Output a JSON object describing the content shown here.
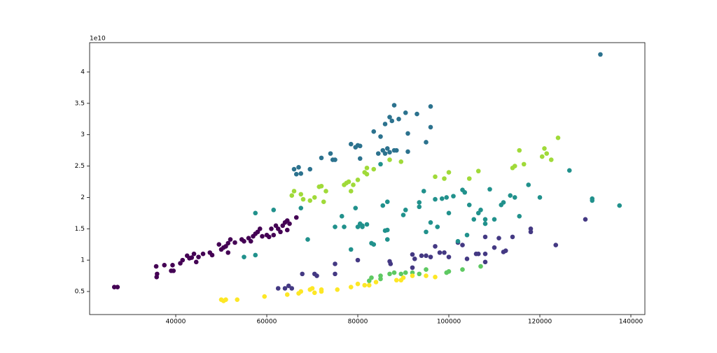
{
  "chart_data": {
    "type": "scatter",
    "y_offset_label": "1e10",
    "xlim": [
      21077,
      143077
    ],
    "ylim": [
      0.132,
      4.468
    ],
    "xticks": [
      40000,
      60000,
      80000,
      100000,
      120000,
      140000
    ],
    "yticks": [
      0.5,
      1.0,
      1.5,
      2.0,
      2.5,
      3.0,
      3.5,
      4.0
    ],
    "series": [
      {
        "color": "#440154",
        "x": [
          26500,
          27200,
          35700,
          35800,
          35900,
          37500,
          39000,
          39300,
          39500,
          41000,
          41500,
          42500,
          43000,
          43500,
          44000,
          44500,
          45000,
          46000,
          47500,
          48000,
          49500,
          50000,
          50500,
          51000,
          51500,
          52000,
          51500,
          53000,
          54500,
          55000,
          56000,
          56500,
          57000,
          57500,
          58000,
          58500,
          59000,
          60000,
          60500,
          61000,
          61500,
          62000,
          62500,
          63000,
          63500,
          64000,
          64500,
          65000,
          64500,
          66500
        ],
        "values": [
          0.57,
          0.57,
          0.9,
          0.73,
          0.78,
          0.92,
          0.83,
          0.92,
          0.83,
          0.95,
          1.0,
          1.07,
          1.03,
          1.04,
          1.1,
          0.97,
          1.05,
          1.1,
          1.12,
          1.08,
          1.25,
          1.17,
          1.2,
          1.22,
          1.27,
          1.33,
          1.12,
          1.28,
          1.33,
          1.3,
          1.35,
          1.3,
          1.38,
          1.42,
          1.45,
          1.5,
          1.38,
          1.4,
          1.37,
          1.5,
          1.4,
          1.55,
          1.5,
          1.45,
          1.55,
          1.6,
          1.63,
          1.58,
          1.48,
          1.68
        ]
      },
      {
        "color": "#443983",
        "x": [
          62500,
          64000,
          64800,
          65500,
          67800,
          70500,
          71000,
          75000,
          75000,
          80000,
          87000,
          87200,
          92000,
          92500,
          92000,
          94000,
          95000,
          96000,
          97000,
          98000,
          99000,
          100000,
          102000,
          103000,
          104000,
          106000,
          106500,
          108000,
          108000,
          108000,
          110000,
          111000,
          112000,
          112500,
          114000,
          118000,
          118000,
          123500,
          130000
        ],
        "values": [
          0.55,
          0.55,
          0.59,
          0.55,
          0.78,
          0.78,
          0.75,
          0.94,
          0.78,
          1.0,
          0.98,
          0.94,
          1.09,
          1.02,
          0.88,
          1.07,
          1.07,
          1.05,
          1.22,
          1.12,
          1.12,
          1.05,
          1.28,
          1.24,
          1.02,
          1.1,
          1.1,
          1.37,
          1.1,
          0.97,
          1.2,
          1.35,
          1.13,
          1.15,
          1.37,
          1.45,
          1.5,
          1.24,
          1.65
        ]
      },
      {
        "color": "#2c728e",
        "x": [
          66000,
          66500,
          67000,
          67500,
          69500,
          72000,
          74000,
          74500,
          75000,
          78500,
          79500,
          80000,
          80500,
          80500,
          83500,
          84500,
          85000,
          85500,
          86000,
          86000,
          86500,
          87000,
          87000,
          87500,
          88000,
          88000,
          88500,
          89000,
          90500,
          91000,
          91000,
          93000,
          95000,
          96000,
          96000,
          133300
        ],
        "values": [
          2.45,
          2.37,
          2.48,
          2.38,
          2.45,
          2.63,
          2.7,
          2.6,
          2.6,
          2.85,
          2.8,
          2.83,
          2.82,
          2.62,
          3.05,
          2.7,
          2.97,
          2.75,
          3.17,
          2.7,
          2.78,
          3.28,
          2.72,
          3.22,
          3.47,
          2.75,
          2.75,
          3.25,
          3.35,
          2.73,
          3.02,
          3.33,
          2.88,
          3.45,
          3.12,
          4.28
        ]
      },
      {
        "color": "#21918c",
        "x": [
          55000,
          57500,
          57500,
          61500,
          67500,
          69000,
          75000,
          76500,
          77000,
          78500,
          79500,
          80000,
          80500,
          81000,
          81000,
          82000,
          83000,
          83500,
          85000,
          85500,
          86000,
          86500,
          86500,
          86500,
          90000,
          90500,
          93500,
          93500,
          94500,
          95000,
          96000,
          97000,
          97500,
          98500,
          99500,
          100000,
          101000,
          102000,
          103000,
          103500,
          104000,
          104500,
          105500,
          106500,
          107000,
          108000,
          108000,
          109000,
          110000,
          111500,
          112000,
          113500,
          114500,
          115500,
          117500,
          120000,
          126500,
          131500,
          131500,
          137500
        ],
        "values": [
          1.05,
          1.75,
          1.08,
          1.8,
          1.83,
          1.33,
          1.53,
          1.7,
          1.53,
          1.17,
          1.83,
          1.53,
          1.58,
          1.55,
          1.53,
          1.57,
          1.27,
          1.25,
          2.53,
          1.87,
          1.47,
          1.33,
          1.48,
          1.93,
          1.72,
          1.8,
          1.92,
          1.85,
          2.1,
          1.45,
          1.6,
          1.97,
          1.53,
          1.98,
          2.0,
          1.75,
          2.02,
          1.3,
          2.12,
          2.08,
          1.4,
          1.88,
          1.65,
          1.75,
          1.8,
          1.65,
          1.58,
          2.13,
          1.65,
          1.88,
          1.92,
          2.03,
          2.0,
          1.7,
          2.2,
          2.0,
          2.43,
          1.98,
          1.95,
          1.87
        ]
      },
      {
        "color": "#5ec962",
        "x": [
          82500,
          83000,
          85000,
          85000,
          87000,
          88000,
          89500,
          90500,
          92000,
          93500,
          95000,
          99500,
          100000,
          103000,
          107000
        ],
        "values": [
          0.67,
          0.72,
          0.7,
          0.75,
          0.78,
          0.8,
          0.78,
          0.8,
          0.8,
          0.78,
          0.85,
          0.8,
          0.82,
          0.85,
          0.9
        ]
      },
      {
        "color": "#a0da39",
        "x": [
          65500,
          66000,
          67500,
          68000,
          69500,
          70500,
          71500,
          72000,
          72500,
          73000,
          77000,
          77500,
          78000,
          78500,
          79000,
          80000,
          81500,
          82000,
          82000,
          83500,
          87000,
          89500,
          97000,
          99000,
          100000,
          104500,
          106500,
          114000,
          114500,
          115500,
          116500,
          120500,
          121000,
          121500,
          122500,
          124000
        ],
        "values": [
          2.03,
          2.1,
          2.05,
          1.97,
          1.95,
          2.0,
          2.17,
          2.18,
          1.93,
          2.1,
          2.2,
          2.23,
          2.25,
          2.1,
          2.2,
          2.28,
          2.4,
          2.47,
          2.37,
          2.45,
          2.6,
          2.57,
          2.33,
          2.3,
          2.4,
          2.3,
          2.42,
          2.47,
          2.5,
          2.75,
          2.53,
          2.65,
          2.78,
          2.7,
          2.6,
          2.95
        ]
      },
      {
        "color": "#fde725",
        "x": [
          50000,
          50500,
          51000,
          53500,
          59500,
          64500,
          67000,
          67500,
          69500,
          70000,
          70500,
          72000,
          72000,
          75500,
          78500,
          80000,
          81500,
          82500,
          84000,
          88500,
          89500,
          90000,
          92000,
          95000,
          97000
        ],
        "values": [
          0.37,
          0.35,
          0.37,
          0.37,
          0.42,
          0.45,
          0.47,
          0.5,
          0.53,
          0.55,
          0.48,
          0.53,
          0.5,
          0.53,
          0.57,
          0.62,
          0.6,
          0.6,
          0.65,
          0.68,
          0.68,
          0.72,
          0.75,
          0.75,
          0.73
        ]
      }
    ]
  }
}
